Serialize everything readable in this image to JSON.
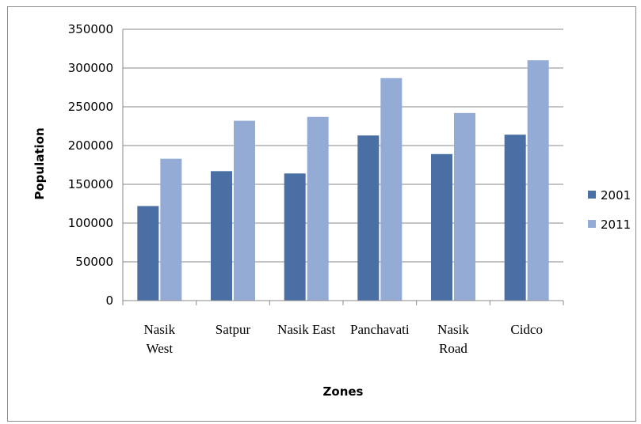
{
  "chart_data": {
    "type": "bar",
    "title": "",
    "xlabel": "Zones",
    "ylabel": "Population",
    "categories": [
      [
        "Nasik",
        "West"
      ],
      [
        "Satpur"
      ],
      [
        "Nasik East"
      ],
      [
        "Panchavati"
      ],
      [
        "Nasik",
        "Road"
      ],
      [
        "Cidco"
      ]
    ],
    "series": [
      {
        "name": "2001",
        "color": "#4a6fa5",
        "values": [
          122000,
          167000,
          164000,
          213000,
          189000,
          214000
        ]
      },
      {
        "name": "2011",
        "color": "#94abd6",
        "values": [
          183000,
          232000,
          237000,
          287000,
          242000,
          310000
        ]
      }
    ],
    "ylim": [
      0,
      350000
    ],
    "yticks": [
      0,
      50000,
      100000,
      150000,
      200000,
      250000,
      300000,
      350000
    ],
    "grid": true,
    "legend_position": "right"
  }
}
